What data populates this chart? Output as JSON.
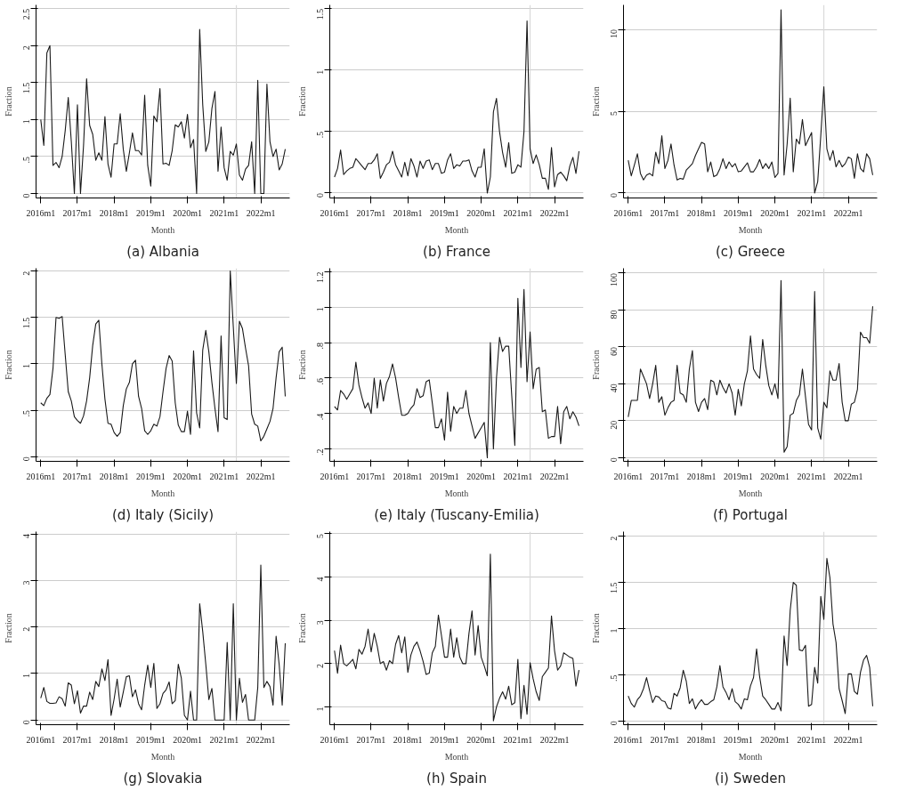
{
  "chart_data": [
    {
      "type": "line",
      "title": "(a) Albania",
      "xlabel": "Month",
      "ylabel": "Fraction",
      "grid": "y",
      "xlim": [
        "2015-11-15",
        "2022-10-15"
      ],
      "ylim": [
        -0.06,
        2.55
      ],
      "xticks": [
        {
          "value": "2016-01",
          "label": "2016m1"
        },
        {
          "value": "2017-01",
          "label": "2017m1"
        },
        {
          "value": "2018-01",
          "label": "2018m1"
        },
        {
          "value": "2019-01",
          "label": "2019m1"
        },
        {
          "value": "2020-01",
          "label": "2020m1"
        },
        {
          "value": "2021-01",
          "label": "2021m1"
        },
        {
          "value": "2022-01",
          "label": "2022m1"
        }
      ],
      "yticks": [
        0,
        {
          "value": 0.5,
          "label": ".5"
        },
        1,
        1.5,
        2,
        2.5
      ],
      "ref_lines": [
        {
          "axis": "x",
          "value": "2021-05",
          "color": "#d9d9d9"
        }
      ],
      "x": [
        "2016-01",
        "2016-02",
        "2016-03",
        "2016-04",
        "2016-05",
        "2016-06",
        "2016-07",
        "2016-08",
        "2016-09",
        "2016-10",
        "2016-11",
        "2016-12",
        "2017-01",
        "2017-02",
        "2017-03",
        "2017-04",
        "2017-05",
        "2017-06",
        "2017-07",
        "2017-08",
        "2017-09",
        "2017-10",
        "2017-11",
        "2017-12",
        "2018-01",
        "2018-02",
        "2018-03",
        "2018-04",
        "2018-05",
        "2018-06",
        "2018-07",
        "2018-08",
        "2018-09",
        "2018-10",
        "2018-11",
        "2018-12",
        "2019-01",
        "2019-02",
        "2019-03",
        "2019-04",
        "2019-05",
        "2019-06",
        "2019-07",
        "2019-08",
        "2019-09",
        "2019-10",
        "2019-11",
        "2019-12",
        "2020-01",
        "2020-02",
        "2020-03",
        "2020-04",
        "2020-05",
        "2020-06",
        "2020-07",
        "2020-08",
        "2020-09",
        "2020-10",
        "2020-11",
        "2020-12",
        "2021-01",
        "2021-02",
        "2021-03",
        "2021-04",
        "2021-05",
        "2021-06",
        "2021-07",
        "2021-08",
        "2021-09",
        "2021-10",
        "2021-11",
        "2021-12",
        "2022-01",
        "2022-02",
        "2022-03",
        "2022-04",
        "2022-05",
        "2022-06",
        "2022-07",
        "2022-08",
        "2022-09"
      ],
      "series": [
        {
          "color": "#1a1a1a",
          "values": [
            1.0,
            0.65,
            1.9,
            2.0,
            0.38,
            0.42,
            0.35,
            0.5,
            0.85,
            1.3,
            0.7,
            0,
            1.2,
            0,
            0.65,
            1.55,
            0.92,
            0.8,
            0.45,
            0.55,
            0.45,
            1.04,
            0.4,
            0.22,
            0.67,
            0.67,
            1.08,
            0.6,
            0.3,
            0.55,
            0.82,
            0.58,
            0.58,
            0.52,
            1.33,
            0.38,
            0.1,
            1.05,
            0.97,
            1.42,
            0.4,
            0.41,
            0.38,
            0.58,
            0.93,
            0.9,
            0.97,
            0.75,
            1.07,
            0.62,
            0.73,
            0,
            2.22,
            1.2,
            0.57,
            0.7,
            1.15,
            1.38,
            0.3,
            0.9,
            0.35,
            0.18,
            0.57,
            0.52,
            0.67,
            0.25,
            0.18,
            0.33,
            0.38,
            0.7,
            0,
            1.53,
            0,
            0,
            1.48,
            0.7,
            0.5,
            0.6,
            0.32,
            0.4,
            0.6
          ]
        }
      ]
    },
    {
      "type": "line",
      "title": "(b) France",
      "xlabel": "Month",
      "ylabel": "Fraction",
      "grid": "y",
      "xlim": [
        "2015-11-15",
        "2022-10-15"
      ],
      "ylim": [
        -0.04,
        1.53
      ],
      "xticks": [
        {
          "value": "2016-01",
          "label": "2016m1"
        },
        {
          "value": "2017-01",
          "label": "2017m1"
        },
        {
          "value": "2018-01",
          "label": "2018m1"
        },
        {
          "value": "2019-01",
          "label": "2019m1"
        },
        {
          "value": "2020-01",
          "label": "2020m1"
        },
        {
          "value": "2021-01",
          "label": "2021m1"
        },
        {
          "value": "2022-01",
          "label": "2022m1"
        }
      ],
      "yticks": [
        0,
        {
          "value": 0.5,
          "label": ".5"
        },
        1,
        1.5
      ],
      "ref_lines": [
        {
          "axis": "x",
          "value": "2021-05",
          "color": "#d9d9d9"
        }
      ],
      "x": [
        "2016-01",
        "2016-02",
        "2016-03",
        "2016-04",
        "2016-05",
        "2016-06",
        "2016-07",
        "2016-08",
        "2016-09",
        "2016-10",
        "2016-11",
        "2016-12",
        "2017-01",
        "2017-02",
        "2017-03",
        "2017-04",
        "2017-05",
        "2017-06",
        "2017-07",
        "2017-08",
        "2017-09",
        "2017-10",
        "2017-11",
        "2017-12",
        "2018-01",
        "2018-02",
        "2018-03",
        "2018-04",
        "2018-05",
        "2018-06",
        "2018-07",
        "2018-08",
        "2018-09",
        "2018-10",
        "2018-11",
        "2018-12",
        "2019-01",
        "2019-02",
        "2019-03",
        "2019-04",
        "2019-05",
        "2019-06",
        "2019-07",
        "2019-08",
        "2019-09",
        "2019-10",
        "2019-11",
        "2019-12",
        "2020-01",
        "2020-02",
        "2020-03",
        "2020-04",
        "2020-05",
        "2020-06",
        "2020-07",
        "2020-08",
        "2020-09",
        "2020-10",
        "2020-11",
        "2020-12",
        "2021-01",
        "2021-02",
        "2021-03",
        "2021-04",
        "2021-05",
        "2021-06",
        "2021-07",
        "2021-08",
        "2021-09",
        "2021-10",
        "2021-11",
        "2021-12",
        "2022-01",
        "2022-02",
        "2022-03",
        "2022-04",
        "2022-05",
        "2022-06",
        "2022-07",
        "2022-08",
        "2022-09"
      ],
      "series": [
        {
          "color": "#1a1a1a",
          "values": [
            0.13,
            0.2,
            0.35,
            0.15,
            0.18,
            0.2,
            0.21,
            0.28,
            0.25,
            0.22,
            0.19,
            0.24,
            0.24,
            0.27,
            0.32,
            0.12,
            0.17,
            0.23,
            0.25,
            0.34,
            0.23,
            0.18,
            0.13,
            0.25,
            0.14,
            0.28,
            0.22,
            0.13,
            0.26,
            0.2,
            0.26,
            0.27,
            0.19,
            0.24,
            0.24,
            0.16,
            0.17,
            0.27,
            0.32,
            0.2,
            0.23,
            0.22,
            0.26,
            0.26,
            0.27,
            0.18,
            0.13,
            0.21,
            0.21,
            0.36,
            0,
            0.13,
            0.66,
            0.77,
            0.5,
            0.33,
            0.21,
            0.41,
            0.16,
            0.17,
            0.23,
            0.21,
            0.5,
            1.4,
            0.36,
            0.24,
            0.31,
            0.23,
            0.12,
            0.12,
            0.03,
            0.37,
            0.05,
            0.15,
            0.17,
            0.14,
            0.1,
            0.22,
            0.29,
            0.16,
            0.34
          ]
        }
      ]
    },
    {
      "type": "line",
      "title": "(c) Greece",
      "xlabel": "Month",
      "ylabel": "Fraction",
      "grid": "y",
      "xlim": [
        "2015-11-15",
        "2022-10-15"
      ],
      "ylim": [
        -0.3,
        11.5
      ],
      "xticks": [
        {
          "value": "2016-01",
          "label": "2016m1"
        },
        {
          "value": "2017-01",
          "label": "2017m1"
        },
        {
          "value": "2018-01",
          "label": "2018m1"
        },
        {
          "value": "2019-01",
          "label": "2019m1"
        },
        {
          "value": "2020-01",
          "label": "2020m1"
        },
        {
          "value": "2021-01",
          "label": "2021m1"
        },
        {
          "value": "2022-01",
          "label": "2022m1"
        }
      ],
      "yticks": [
        0,
        5,
        10
      ],
      "ref_lines": [
        {
          "axis": "x",
          "value": "2021-05",
          "color": "#d9d9d9"
        }
      ],
      "x": [
        "2016-01",
        "2016-02",
        "2016-03",
        "2016-04",
        "2016-05",
        "2016-06",
        "2016-07",
        "2016-08",
        "2016-09",
        "2016-10",
        "2016-11",
        "2016-12",
        "2017-01",
        "2017-02",
        "2017-03",
        "2017-04",
        "2017-05",
        "2017-06",
        "2017-07",
        "2017-08",
        "2017-09",
        "2017-10",
        "2017-11",
        "2017-12",
        "2018-01",
        "2018-02",
        "2018-03",
        "2018-04",
        "2018-05",
        "2018-06",
        "2018-07",
        "2018-08",
        "2018-09",
        "2018-10",
        "2018-11",
        "2018-12",
        "2019-01",
        "2019-02",
        "2019-03",
        "2019-04",
        "2019-05",
        "2019-06",
        "2019-07",
        "2019-08",
        "2019-09",
        "2019-10",
        "2019-11",
        "2019-12",
        "2020-01",
        "2020-02",
        "2020-03",
        "2020-04",
        "2020-05",
        "2020-06",
        "2020-07",
        "2020-08",
        "2020-09",
        "2020-10",
        "2020-11",
        "2020-12",
        "2021-01",
        "2021-02",
        "2021-03",
        "2021-04",
        "2021-05",
        "2021-06",
        "2021-07",
        "2021-08",
        "2021-09",
        "2021-10",
        "2021-11",
        "2021-12",
        "2022-01",
        "2022-02",
        "2022-03",
        "2022-04",
        "2022-05",
        "2022-06",
        "2022-07",
        "2022-08",
        "2022-09"
      ],
      "series": [
        {
          "color": "#1a1a1a",
          "values": [
            2.0,
            1.05,
            1.7,
            2.4,
            1.2,
            0.8,
            1.1,
            1.2,
            1.05,
            2.5,
            1.8,
            3.5,
            1.5,
            2.0,
            3.0,
            1.7,
            0.8,
            0.9,
            0.85,
            1.4,
            1.6,
            1.8,
            2.3,
            2.7,
            3.1,
            3.0,
            1.3,
            1.9,
            1.0,
            1.1,
            1.5,
            2.1,
            1.5,
            1.9,
            1.6,
            1.8,
            1.3,
            1.35,
            1.6,
            1.85,
            1.3,
            1.3,
            1.6,
            2.05,
            1.5,
            1.8,
            1.5,
            1.9,
            0.95,
            1.2,
            11.2,
            1.1,
            3.0,
            5.8,
            1.3,
            3.3,
            3.0,
            4.5,
            2.9,
            3.3,
            3.7,
            0,
            0.7,
            3.5,
            6.5,
            2.7,
            2.0,
            2.6,
            1.6,
            2.0,
            1.6,
            1.8,
            2.2,
            2.1,
            0.9,
            2.4,
            1.5,
            1.3,
            2.4,
            2.1,
            1.1
          ]
        }
      ]
    },
    {
      "type": "line",
      "title": "(d) Italy (Sicily)",
      "xlabel": "Month",
      "ylabel": "Fraction",
      "grid": "y",
      "xlim": [
        "2015-11-15",
        "2022-10-15"
      ],
      "ylim": [
        -0.05,
        2.03
      ],
      "xticks": [
        {
          "value": "2016-01",
          "label": "2016m1"
        },
        {
          "value": "2017-01",
          "label": "2017m1"
        },
        {
          "value": "2018-01",
          "label": "2018m1"
        },
        {
          "value": "2019-01",
          "label": "2019m1"
        },
        {
          "value": "2020-01",
          "label": "2020m1"
        },
        {
          "value": "2021-01",
          "label": "2021m1"
        },
        {
          "value": "2022-01",
          "label": "2022m1"
        }
      ],
      "yticks": [
        0,
        {
          "value": 0.5,
          "label": ".5"
        },
        1,
        1.5,
        2
      ],
      "ref_lines": [
        {
          "axis": "x",
          "value": "2021-05",
          "color": "#d9d9d9"
        }
      ],
      "x": [
        "2016-01",
        "2016-02",
        "2016-03",
        "2016-04",
        "2016-05",
        "2016-06",
        "2016-07",
        "2016-08",
        "2016-09",
        "2016-10",
        "2016-11",
        "2016-12",
        "2017-01",
        "2017-02",
        "2017-03",
        "2017-04",
        "2017-05",
        "2017-06",
        "2017-07",
        "2017-08",
        "2017-09",
        "2017-10",
        "2017-11",
        "2017-12",
        "2018-01",
        "2018-02",
        "2018-03",
        "2018-04",
        "2018-05",
        "2018-06",
        "2018-07",
        "2018-08",
        "2018-09",
        "2018-10",
        "2018-11",
        "2018-12",
        "2019-01",
        "2019-02",
        "2019-03",
        "2019-04",
        "2019-05",
        "2019-06",
        "2019-07",
        "2019-08",
        "2019-09",
        "2019-10",
        "2019-11",
        "2019-12",
        "2020-01",
        "2020-02",
        "2020-03",
        "2020-04",
        "2020-05",
        "2020-06",
        "2020-07",
        "2020-08",
        "2020-09",
        "2020-10",
        "2020-11",
        "2020-12",
        "2021-01",
        "2021-02",
        "2021-03",
        "2021-04",
        "2021-05",
        "2021-06",
        "2021-07",
        "2021-08",
        "2021-09",
        "2021-10",
        "2021-11",
        "2021-12",
        "2022-01",
        "2022-02",
        "2022-03",
        "2022-04",
        "2022-05",
        "2022-06",
        "2022-07",
        "2022-08",
        "2022-09"
      ],
      "series": [
        {
          "color": "#1a1a1a",
          "values": [
            0.58,
            0.55,
            0.63,
            0.67,
            0.95,
            1.5,
            1.49,
            1.51,
            1.1,
            0.7,
            0.6,
            0.43,
            0.39,
            0.36,
            0.44,
            0.6,
            0.85,
            1.2,
            1.43,
            1.47,
            1.0,
            0.62,
            0.36,
            0.35,
            0.26,
            0.22,
            0.26,
            0.55,
            0.73,
            0.8,
            1.0,
            1.04,
            0.65,
            0.52,
            0.28,
            0.24,
            0.28,
            0.35,
            0.33,
            0.43,
            0.7,
            0.95,
            1.09,
            1.03,
            0.58,
            0.34,
            0.27,
            0.27,
            0.49,
            0.24,
            1.14,
            0.47,
            0.31,
            1.15,
            1.36,
            1.13,
            0.8,
            0.52,
            0.27,
            1.3,
            0.42,
            0.4,
            2.0,
            1.4,
            0.79,
            1.46,
            1.38,
            1.17,
            0.98,
            0.46,
            0.35,
            0.33,
            0.17,
            0.22,
            0.3,
            0.38,
            0.52,
            0.85,
            1.13,
            1.18,
            0.65
          ]
        }
      ]
    },
    {
      "type": "line",
      "title": "(e) Italy (Tuscany-Emilia)",
      "xlabel": "Month",
      "ylabel": "Fraction",
      "grid": "y",
      "xlim": [
        "2015-11-15",
        "2022-10-15"
      ],
      "ylim": [
        0.13,
        1.22
      ],
      "xticks": [
        {
          "value": "2016-01",
          "label": "2016m1"
        },
        {
          "value": "2017-01",
          "label": "2017m1"
        },
        {
          "value": "2018-01",
          "label": "2018m1"
        },
        {
          "value": "2019-01",
          "label": "2019m1"
        },
        {
          "value": "2020-01",
          "label": "2020m1"
        },
        {
          "value": "2021-01",
          "label": "2021m1"
        },
        {
          "value": "2022-01",
          "label": "2022m1"
        }
      ],
      "yticks": [
        {
          "value": 0.2,
          "label": ".2"
        },
        {
          "value": 0.4,
          "label": ".4"
        },
        {
          "value": 0.6,
          "label": ".6"
        },
        {
          "value": 0.8,
          "label": ".8"
        },
        1,
        1.2
      ],
      "ref_lines": [
        {
          "axis": "x",
          "value": "2021-05",
          "color": "#d9d9d9"
        }
      ],
      "x": [
        "2016-01",
        "2016-02",
        "2016-03",
        "2016-04",
        "2016-05",
        "2016-06",
        "2016-07",
        "2016-08",
        "2016-09",
        "2016-10",
        "2016-11",
        "2016-12",
        "2017-01",
        "2017-02",
        "2017-03",
        "2017-04",
        "2017-05",
        "2017-06",
        "2017-07",
        "2017-08",
        "2017-09",
        "2017-10",
        "2017-11",
        "2017-12",
        "2018-01",
        "2018-02",
        "2018-03",
        "2018-04",
        "2018-05",
        "2018-06",
        "2018-07",
        "2018-08",
        "2018-09",
        "2018-10",
        "2018-11",
        "2018-12",
        "2019-01",
        "2019-02",
        "2019-03",
        "2019-04",
        "2019-05",
        "2019-06",
        "2019-07",
        "2019-08",
        "2019-09",
        "2019-10",
        "2019-11",
        "2019-12",
        "2020-01",
        "2020-02",
        "2020-03",
        "2020-04",
        "2020-05",
        "2020-06",
        "2020-07",
        "2020-08",
        "2020-09",
        "2020-10",
        "2020-11",
        "2020-12",
        "2021-01",
        "2021-02",
        "2021-03",
        "2021-04",
        "2021-05",
        "2021-06",
        "2021-07",
        "2021-08",
        "2021-09",
        "2021-10",
        "2021-11",
        "2021-12",
        "2022-01",
        "2022-02",
        "2022-03",
        "2022-04",
        "2022-05",
        "2022-06",
        "2022-07",
        "2022-08",
        "2022-09"
      ],
      "series": [
        {
          "color": "#1a1a1a",
          "values": [
            0.44,
            0.42,
            0.53,
            0.51,
            0.48,
            0.51,
            0.54,
            0.69,
            0.56,
            0.49,
            0.43,
            0.46,
            0.4,
            0.6,
            0.43,
            0.59,
            0.47,
            0.57,
            0.61,
            0.68,
            0.6,
            0.49,
            0.39,
            0.39,
            0.4,
            0.43,
            0.45,
            0.54,
            0.49,
            0.5,
            0.58,
            0.59,
            0.46,
            0.32,
            0.32,
            0.37,
            0.25,
            0.52,
            0.3,
            0.44,
            0.4,
            0.43,
            0.43,
            0.53,
            0.4,
            0.33,
            0.26,
            0.29,
            0.32,
            0.35,
            0.15,
            0.8,
            0.2,
            0.6,
            0.83,
            0.75,
            0.78,
            0.78,
            0.5,
            0.22,
            1.05,
            0.66,
            1.1,
            0.58,
            0.86,
            0.54,
            0.65,
            0.66,
            0.41,
            0.42,
            0.26,
            0.27,
            0.27,
            0.44,
            0.23,
            0.41,
            0.44,
            0.37,
            0.41,
            0.38,
            0.33
          ]
        }
      ]
    },
    {
      "type": "line",
      "title": "(f) Portugal",
      "xlabel": "Month",
      "ylabel": "Fraction",
      "grid": "y",
      "xlim": [
        "2015-11-15",
        "2022-10-15"
      ],
      "ylim": [
        -2,
        102.6
      ],
      "xticks": [
        {
          "value": "2016-01",
          "label": "2016m1"
        },
        {
          "value": "2017-01",
          "label": "2017m1"
        },
        {
          "value": "2018-01",
          "label": "2018m1"
        },
        {
          "value": "2019-01",
          "label": "2019m1"
        },
        {
          "value": "2020-01",
          "label": "2020m1"
        },
        {
          "value": "2021-01",
          "label": "2021m1"
        },
        {
          "value": "2022-01",
          "label": "2022m1"
        }
      ],
      "yticks": [
        0,
        20,
        40,
        60,
        80,
        100
      ],
      "ref_lines": [
        {
          "axis": "x",
          "value": "2021-05",
          "color": "#d9d9d9"
        }
      ],
      "x": [
        "2016-01",
        "2016-02",
        "2016-03",
        "2016-04",
        "2016-05",
        "2016-06",
        "2016-07",
        "2016-08",
        "2016-09",
        "2016-10",
        "2016-11",
        "2016-12",
        "2017-01",
        "2017-02",
        "2017-03",
        "2017-04",
        "2017-05",
        "2017-06",
        "2017-07",
        "2017-08",
        "2017-09",
        "2017-10",
        "2017-11",
        "2017-12",
        "2018-01",
        "2018-02",
        "2018-03",
        "2018-04",
        "2018-05",
        "2018-06",
        "2018-07",
        "2018-08",
        "2018-09",
        "2018-10",
        "2018-11",
        "2018-12",
        "2019-01",
        "2019-02",
        "2019-03",
        "2019-04",
        "2019-05",
        "2019-06",
        "2019-07",
        "2019-08",
        "2019-09",
        "2019-10",
        "2019-11",
        "2019-12",
        "2020-01",
        "2020-02",
        "2020-03",
        "2020-04",
        "2020-05",
        "2020-06",
        "2020-07",
        "2020-08",
        "2020-09",
        "2020-10",
        "2020-11",
        "2020-12",
        "2021-01",
        "2021-02",
        "2021-03",
        "2021-04",
        "2021-05",
        "2021-06",
        "2021-07",
        "2021-08",
        "2021-09",
        "2021-10",
        "2021-11",
        "2021-12",
        "2022-01",
        "2022-02",
        "2022-03",
        "2022-04",
        "2022-05",
        "2022-06",
        "2022-07",
        "2022-08",
        "2022-09"
      ],
      "series": [
        {
          "color": "#1a1a1a",
          "values": [
            22,
            31,
            31,
            31,
            48,
            44,
            40,
            32,
            40,
            50,
            30,
            33,
            23,
            27,
            30,
            31,
            50,
            35,
            34,
            30,
            48,
            58,
            30,
            25,
            30,
            32,
            26,
            42,
            41,
            34,
            42,
            38,
            35,
            40,
            35,
            23,
            37,
            28,
            40,
            47,
            66,
            48,
            45,
            43,
            64,
            50,
            39,
            34,
            40,
            32,
            96,
            3,
            6,
            23,
            24,
            31,
            34,
            48,
            33,
            18,
            15,
            90,
            16,
            10,
            30,
            27,
            47,
            42,
            42,
            51,
            30,
            20,
            20,
            29,
            30,
            37,
            68,
            65,
            65,
            62,
            82
          ]
        }
      ]
    },
    {
      "type": "line",
      "title": "(g) Slovakia",
      "xlabel": "Month",
      "ylabel": "Fraction",
      "grid": "y",
      "xlim": [
        "2015-11-15",
        "2022-10-15"
      ],
      "ylim": [
        -0.1,
        4.05
      ],
      "xticks": [
        {
          "value": "2016-01",
          "label": "2016m1"
        },
        {
          "value": "2017-01",
          "label": "2017m1"
        },
        {
          "value": "2018-01",
          "label": "2018m1"
        },
        {
          "value": "2019-01",
          "label": "2019m1"
        },
        {
          "value": "2020-01",
          "label": "2020m1"
        },
        {
          "value": "2021-01",
          "label": "2021m1"
        },
        {
          "value": "2022-01",
          "label": "2022m1"
        }
      ],
      "yticks": [
        0,
        1,
        2,
        3,
        4
      ],
      "ref_lines": [
        {
          "axis": "x",
          "value": "2021-05",
          "color": "#d9d9d9"
        }
      ],
      "x": [
        "2016-01",
        "2016-02",
        "2016-03",
        "2016-04",
        "2016-05",
        "2016-06",
        "2016-07",
        "2016-08",
        "2016-09",
        "2016-10",
        "2016-11",
        "2016-12",
        "2017-01",
        "2017-02",
        "2017-03",
        "2017-04",
        "2017-05",
        "2017-06",
        "2017-07",
        "2017-08",
        "2017-09",
        "2017-10",
        "2017-11",
        "2017-12",
        "2018-01",
        "2018-02",
        "2018-03",
        "2018-04",
        "2018-05",
        "2018-06",
        "2018-07",
        "2018-08",
        "2018-09",
        "2018-10",
        "2018-11",
        "2018-12",
        "2019-01",
        "2019-02",
        "2019-03",
        "2019-04",
        "2019-05",
        "2019-06",
        "2019-07",
        "2019-08",
        "2019-09",
        "2019-10",
        "2019-11",
        "2019-12",
        "2020-01",
        "2020-02",
        "2020-03",
        "2020-04",
        "2020-05",
        "2020-06",
        "2020-07",
        "2020-08",
        "2020-09",
        "2020-10",
        "2020-11",
        "2020-12",
        "2021-01",
        "2021-02",
        "2021-03",
        "2021-04",
        "2021-05",
        "2021-06",
        "2021-07",
        "2021-08",
        "2021-09",
        "2021-10",
        "2021-11",
        "2021-12",
        "2022-01",
        "2022-02",
        "2022-03",
        "2022-04",
        "2022-05",
        "2022-06",
        "2022-07",
        "2022-08",
        "2022-09"
      ],
      "series": [
        {
          "color": "#1a1a1a",
          "values": [
            0.47,
            0.7,
            0.4,
            0.36,
            0.36,
            0.37,
            0.5,
            0.46,
            0.3,
            0.8,
            0.75,
            0.35,
            0.63,
            0.15,
            0.3,
            0.3,
            0.6,
            0.44,
            0.83,
            0.72,
            1.1,
            0.85,
            1.3,
            0.1,
            0.45,
            0.88,
            0.28,
            0.6,
            0.93,
            0.95,
            0.5,
            0.65,
            0.35,
            0.22,
            0.75,
            1.18,
            0.7,
            1.22,
            0.25,
            0.35,
            0.57,
            0.65,
            0.82,
            0.35,
            0.42,
            1.2,
            0.9,
            0.1,
            0,
            0.62,
            0,
            0,
            2.5,
            1.9,
            1.2,
            0.44,
            0.68,
            0,
            0,
            0,
            0,
            1.67,
            0,
            2.5,
            0,
            0.9,
            0.38,
            0.55,
            0,
            0,
            0,
            0.7,
            3.33,
            0.7,
            0.83,
            0.72,
            0.32,
            1.8,
            1.2,
            0.32,
            1.65
          ]
        }
      ]
    },
    {
      "type": "line",
      "title": "(h) Spain",
      "xlabel": "Month",
      "ylabel": "Fraction",
      "grid": "y",
      "xlim": [
        "2015-11-15",
        "2022-10-15"
      ],
      "ylim": [
        0.59,
        5.05
      ],
      "xticks": [
        {
          "value": "2016-01",
          "label": "2016m1"
        },
        {
          "value": "2017-01",
          "label": "2017m1"
        },
        {
          "value": "2018-01",
          "label": "2018m1"
        },
        {
          "value": "2019-01",
          "label": "2019m1"
        },
        {
          "value": "2020-01",
          "label": "2020m1"
        },
        {
          "value": "2021-01",
          "label": "2021m1"
        },
        {
          "value": "2022-01",
          "label": "2022m1"
        }
      ],
      "yticks": [
        1,
        2,
        3,
        4,
        5
      ],
      "ref_lines": [
        {
          "axis": "x",
          "value": "2021-05",
          "color": "#d9d9d9"
        }
      ],
      "x": [
        "2016-01",
        "2016-02",
        "2016-03",
        "2016-04",
        "2016-05",
        "2016-06",
        "2016-07",
        "2016-08",
        "2016-09",
        "2016-10",
        "2016-11",
        "2016-12",
        "2017-01",
        "2017-02",
        "2017-03",
        "2017-04",
        "2017-05",
        "2017-06",
        "2017-07",
        "2017-08",
        "2017-09",
        "2017-10",
        "2017-11",
        "2017-12",
        "2018-01",
        "2018-02",
        "2018-03",
        "2018-04",
        "2018-05",
        "2018-06",
        "2018-07",
        "2018-08",
        "2018-09",
        "2018-10",
        "2018-11",
        "2018-12",
        "2019-01",
        "2019-02",
        "2019-03",
        "2019-04",
        "2019-05",
        "2019-06",
        "2019-07",
        "2019-08",
        "2019-09",
        "2019-10",
        "2019-11",
        "2019-12",
        "2020-01",
        "2020-02",
        "2020-03",
        "2020-04",
        "2020-05",
        "2020-06",
        "2020-07",
        "2020-08",
        "2020-09",
        "2020-10",
        "2020-11",
        "2020-12",
        "2021-01",
        "2021-02",
        "2021-03",
        "2021-04",
        "2021-05",
        "2021-06",
        "2021-07",
        "2021-08",
        "2021-09",
        "2021-10",
        "2021-11",
        "2021-12",
        "2022-01",
        "2022-02",
        "2022-03",
        "2022-04",
        "2022-05",
        "2022-06",
        "2022-07",
        "2022-08",
        "2022-09"
      ],
      "series": [
        {
          "color": "#1a1a1a",
          "values": [
            2.3,
            1.78,
            2.43,
            2.0,
            1.95,
            2.02,
            2.1,
            1.88,
            2.33,
            2.22,
            2.4,
            2.8,
            2.27,
            2.7,
            2.4,
            2.0,
            2.05,
            1.85,
            2.07,
            2.0,
            2.45,
            2.65,
            2.25,
            2.62,
            1.8,
            2.2,
            2.4,
            2.5,
            2.3,
            2.05,
            1.75,
            1.78,
            2.25,
            2.4,
            3.12,
            2.65,
            2.15,
            2.15,
            2.8,
            2.15,
            2.6,
            2.15,
            2.0,
            2.0,
            2.7,
            3.22,
            2.2,
            2.88,
            2.15,
            1.95,
            1.72,
            4.53,
            0.68,
            1.0,
            1.2,
            1.35,
            1.18,
            1.48,
            1.05,
            1.1,
            2.1,
            0.73,
            1.5,
            0.83,
            2.02,
            1.65,
            1.35,
            1.15,
            1.7,
            1.8,
            1.9,
            3.1,
            2.3,
            1.85,
            1.95,
            2.25,
            2.2,
            2.15,
            2.12,
            1.48,
            1.85
          ]
        }
      ]
    },
    {
      "type": "line",
      "title": "(i) Sweden",
      "xlabel": "Month",
      "ylabel": "Fraction",
      "grid": "y",
      "xlim": [
        "2015-11-15",
        "2022-10-15"
      ],
      "ylim": [
        -0.04,
        2.05
      ],
      "xticks": [
        {
          "value": "2016-01",
          "label": "2016m1"
        },
        {
          "value": "2017-01",
          "label": "2017m1"
        },
        {
          "value": "2018-01",
          "label": "2018m1"
        },
        {
          "value": "2019-01",
          "label": "2019m1"
        },
        {
          "value": "2020-01",
          "label": "2020m1"
        },
        {
          "value": "2021-01",
          "label": "2021m1"
        },
        {
          "value": "2022-01",
          "label": "2022m1"
        }
      ],
      "yticks": [
        0,
        {
          "value": 0.5,
          "label": ".5"
        },
        1,
        1.5,
        2
      ],
      "ref_lines": [
        {
          "axis": "x",
          "value": "2021-05",
          "color": "#d9d9d9"
        }
      ],
      "x": [
        "2016-01",
        "2016-02",
        "2016-03",
        "2016-04",
        "2016-05",
        "2016-06",
        "2016-07",
        "2016-08",
        "2016-09",
        "2016-10",
        "2016-11",
        "2016-12",
        "2017-01",
        "2017-02",
        "2017-03",
        "2017-04",
        "2017-05",
        "2017-06",
        "2017-07",
        "2017-08",
        "2017-09",
        "2017-10",
        "2017-11",
        "2017-12",
        "2018-01",
        "2018-02",
        "2018-03",
        "2018-04",
        "2018-05",
        "2018-06",
        "2018-07",
        "2018-08",
        "2018-09",
        "2018-10",
        "2018-11",
        "2018-12",
        "2019-01",
        "2019-02",
        "2019-03",
        "2019-04",
        "2019-05",
        "2019-06",
        "2019-07",
        "2019-08",
        "2019-09",
        "2019-10",
        "2019-11",
        "2019-12",
        "2020-01",
        "2020-02",
        "2020-03",
        "2020-04",
        "2020-05",
        "2020-06",
        "2020-07",
        "2020-08",
        "2020-09",
        "2020-10",
        "2020-11",
        "2020-12",
        "2021-01",
        "2021-02",
        "2021-03",
        "2021-04",
        "2021-05",
        "2021-06",
        "2021-07",
        "2021-08",
        "2021-09",
        "2021-10",
        "2021-11",
        "2021-12",
        "2022-01",
        "2022-02",
        "2022-03",
        "2022-04",
        "2022-05",
        "2022-06",
        "2022-07",
        "2022-08",
        "2022-09"
      ],
      "series": [
        {
          "color": "#1a1a1a",
          "values": [
            0.27,
            0.19,
            0.15,
            0.23,
            0.27,
            0.35,
            0.47,
            0.33,
            0.2,
            0.27,
            0.26,
            0.22,
            0.21,
            0.14,
            0.13,
            0.3,
            0.27,
            0.36,
            0.55,
            0.43,
            0.19,
            0.24,
            0.13,
            0.19,
            0.23,
            0.18,
            0.18,
            0.21,
            0.23,
            0.37,
            0.6,
            0.37,
            0.31,
            0.23,
            0.35,
            0.21,
            0.18,
            0.13,
            0.24,
            0.23,
            0.38,
            0.47,
            0.78,
            0.48,
            0.27,
            0.23,
            0.18,
            0.13,
            0.13,
            0.2,
            0.11,
            0.92,
            0.6,
            1.2,
            1.5,
            1.47,
            0.77,
            0.76,
            0.82,
            0.16,
            0.18,
            0.58,
            0.41,
            1.35,
            1.1,
            1.76,
            1.55,
            1.05,
            0.85,
            0.35,
            0.22,
            0.08,
            0.51,
            0.51,
            0.32,
            0.29,
            0.53,
            0.66,
            0.71,
            0.58,
            0.16
          ]
        }
      ]
    }
  ]
}
